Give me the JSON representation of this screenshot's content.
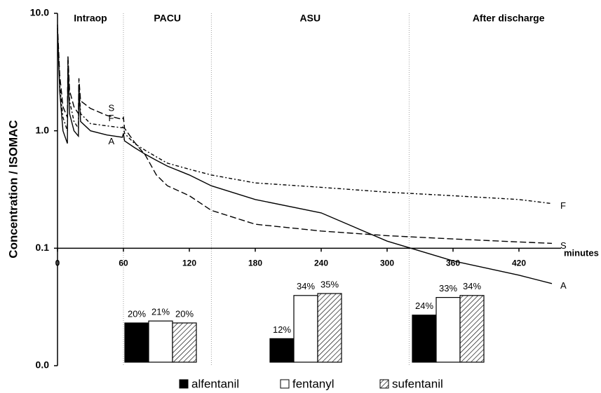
{
  "chart_data": [
    {
      "type": "line",
      "ylabel": "Concentration / ISOMAC",
      "xlabel": "minutes",
      "log_y": true,
      "ylim": [
        0.01,
        10
      ],
      "yticks": [
        {
          "value": 10,
          "label": "10.0"
        },
        {
          "value": 1,
          "label": "1.0"
        },
        0.1,
        {
          "value": 0.01,
          "label": "0.0"
        }
      ],
      "xlim": [
        0,
        450
      ],
      "xticks": [
        0,
        60,
        120,
        180,
        240,
        300,
        360,
        420
      ],
      "phases": [
        {
          "label": "Intraop",
          "start": 0,
          "end": 60
        },
        {
          "label": "PACU",
          "start": 60,
          "end": 140
        },
        {
          "label": "ASU",
          "start": 140,
          "end": 320
        },
        {
          "label": "After discharge",
          "start": 320,
          "end": 450
        }
      ],
      "x": [
        0,
        2,
        5,
        9,
        9.5,
        11,
        15,
        19,
        19.5,
        21,
        30,
        45,
        59,
        60,
        61,
        70,
        80,
        90,
        100,
        120,
        140,
        180,
        240,
        300,
        360,
        420,
        450
      ],
      "series": [
        {
          "name": "A",
          "color": "#000",
          "style": "solid",
          "values": [
            7.5,
            2.2,
            1.0,
            0.78,
            3.5,
            1.4,
            1.0,
            0.9,
            2.4,
            1.2,
            1.0,
            0.92,
            0.88,
            0.95,
            0.82,
            0.72,
            0.63,
            0.56,
            0.5,
            0.42,
            0.34,
            0.26,
            0.2,
            0.115,
            0.078,
            0.059,
            0.05
          ]
        },
        {
          "name": "F",
          "color": "#000",
          "style": "dotted",
          "values": [
            7,
            2.5,
            1.3,
            1.0,
            4.2,
            1.8,
            1.2,
            1.05,
            2.6,
            1.4,
            1.15,
            1.1,
            1.06,
            1.1,
            0.95,
            0.78,
            0.68,
            0.6,
            0.53,
            0.47,
            0.42,
            0.36,
            0.33,
            0.3,
            0.28,
            0.26,
            0.24
          ]
        },
        {
          "name": "S",
          "color": "#000",
          "style": "dashed",
          "values": [
            8,
            3,
            1.6,
            1.3,
            4.3,
            2.2,
            1.6,
            1.4,
            2.8,
            1.8,
            1.55,
            1.35,
            1.25,
            1.3,
            1.05,
            0.8,
            0.62,
            0.42,
            0.34,
            0.28,
            0.21,
            0.16,
            0.14,
            0.128,
            0.12,
            0.113,
            0.11
          ]
        }
      ]
    },
    {
      "type": "bar",
      "series": [
        {
          "name": "alfentanil",
          "color": "#000",
          "values": [
            20,
            12,
            24
          ],
          "value_labels": [
            "20%",
            "12%",
            "24%"
          ]
        },
        {
          "name": "fentanyl",
          "color": "#fff",
          "values": [
            21,
            34,
            33
          ],
          "value_labels": [
            "21%",
            "34%",
            "33%"
          ]
        },
        {
          "name": "sufentanil",
          "color": "hatch",
          "values": [
            20,
            35,
            34
          ],
          "value_labels": [
            "20%",
            "35%",
            "34%"
          ]
        }
      ]
    }
  ]
}
